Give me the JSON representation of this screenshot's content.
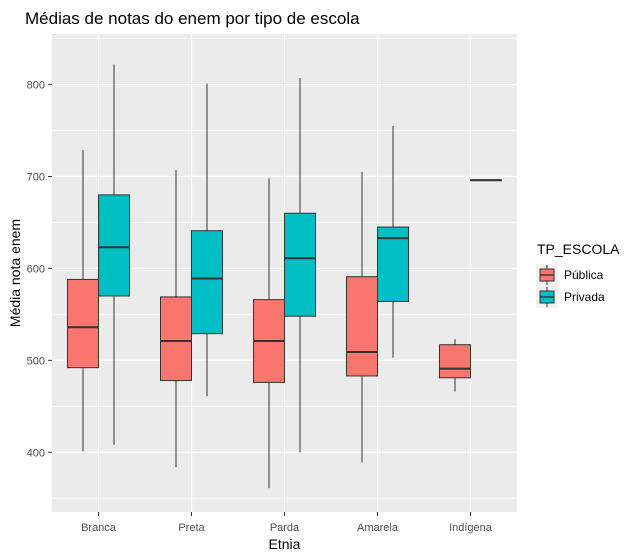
{
  "chart_data": {
    "type": "boxplot",
    "title": "Médias de notas do enem por tipo de escola",
    "xlabel": "Etnia",
    "ylabel": "Média nota enem",
    "categories": [
      "Branca",
      "Preta",
      "Parda",
      "Amarela",
      "Indígena"
    ],
    "ylim": [
      335,
      855
    ],
    "y_ticks": [
      400,
      500,
      600,
      700,
      800
    ],
    "y_tick_labels": [
      "400",
      "500",
      "600",
      "700",
      "800"
    ],
    "grid": true,
    "legend": {
      "title": "TP_ESCOLA",
      "position": "right"
    },
    "series": [
      {
        "name": "Pública",
        "color": "#F8766D",
        "boxes": [
          {
            "category": "Branca",
            "min": 401,
            "q1": 492,
            "median": 536,
            "q3": 588,
            "max": 729
          },
          {
            "category": "Preta",
            "min": 384,
            "q1": 478,
            "median": 521,
            "q3": 569,
            "max": 707
          },
          {
            "category": "Parda",
            "min": 361,
            "q1": 476,
            "median": 521,
            "q3": 566,
            "max": 698
          },
          {
            "category": "Amarela",
            "min": 389,
            "q1": 483,
            "median": 509,
            "q3": 591,
            "max": 705
          },
          {
            "category": "Indígena",
            "min": 466,
            "q1": 481,
            "median": 491,
            "q3": 517,
            "max": 523
          }
        ]
      },
      {
        "name": "Privada",
        "color": "#00BFC4",
        "boxes": [
          {
            "category": "Branca",
            "min": 408,
            "q1": 570,
            "median": 623,
            "q3": 680,
            "max": 822
          },
          {
            "category": "Preta",
            "min": 461,
            "q1": 529,
            "median": 589,
            "q3": 641,
            "max": 801
          },
          {
            "category": "Parda",
            "min": 400,
            "q1": 548,
            "median": 611,
            "q3": 660,
            "max": 807
          },
          {
            "category": "Amarela",
            "min": 503,
            "q1": 564,
            "median": 633,
            "q3": 645,
            "max": 755
          },
          {
            "category": "Indígena",
            "min": 696,
            "q1": 696,
            "median": 696,
            "q3": 696,
            "max": 696
          }
        ]
      }
    ]
  }
}
